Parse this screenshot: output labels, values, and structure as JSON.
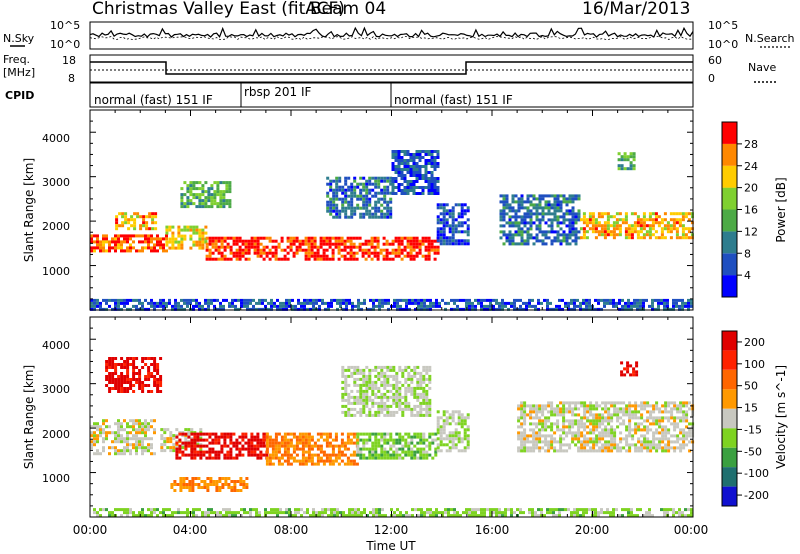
{
  "header": {
    "title": "Christmas Valley East (fitACF)",
    "beam": "Beam 04",
    "date": "16/Mar/2013"
  },
  "noise_panel": {
    "left_label": "N.Sky",
    "left_ticks": [
      "10^5",
      "10^0"
    ],
    "right_ticks": [
      "10^5",
      "10^0"
    ],
    "right_label": "N.Search"
  },
  "freq_panel": {
    "left_label_1": "Freq.",
    "left_label_2": "[MHz]",
    "left_ticks": [
      "18",
      "8"
    ],
    "right_ticks": [
      "60",
      "0"
    ],
    "right_label": "Nave"
  },
  "cpid": {
    "label": "CPID",
    "segments": [
      {
        "name": "normal (fast) 151 IF",
        "start_hour": 0,
        "end_hour": 5.9
      },
      {
        "name": "rbsp 201 IF",
        "start_hour": 5.9,
        "end_hour": 11.9
      },
      {
        "name": "normal (fast) 151 IF",
        "start_hour": 11.9,
        "end_hour": 24
      }
    ]
  },
  "x_axis": {
    "label": "Time UT",
    "ticks": [
      "00:00",
      "04:00",
      "08:00",
      "12:00",
      "16:00",
      "20:00",
      "00:00"
    ]
  },
  "chart_data": [
    {
      "type": "heatmap",
      "parameter": "power",
      "xlabel": "Time UT",
      "ylabel": "Slant Range [km]",
      "xlim": [
        0,
        24
      ],
      "ylim": [
        0,
        4500
      ],
      "yticks": [
        "1000",
        "2000",
        "3000",
        "4000"
      ],
      "colorbar": {
        "label": "Power [dB]",
        "ticks": [
          "4",
          "8",
          "12",
          "16",
          "20",
          "24",
          "28"
        ],
        "range": [
          0,
          30
        ],
        "colors": [
          "#0000ff",
          "#1f4fc0",
          "#2e7d8e",
          "#4caa46",
          "#7fd030",
          "#ffcc00",
          "#ff8800",
          "#ff0000"
        ]
      },
      "echo_regions": [
        {
          "time": [
            0.0,
            3.0
          ],
          "range": [
            1300,
            1700
          ],
          "value": 26
        },
        {
          "time": [
            3.0,
            4.6
          ],
          "range": [
            1400,
            1900
          ],
          "value": 20
        },
        {
          "time": [
            4.6,
            13.8
          ],
          "range": [
            1150,
            1650
          ],
          "value": 28
        },
        {
          "time": [
            1.0,
            2.6
          ],
          "range": [
            1800,
            2200
          ],
          "value": 22
        },
        {
          "time": [
            3.6,
            5.6
          ],
          "range": [
            2300,
            2900
          ],
          "value": 14
        },
        {
          "time": [
            9.4,
            12.0
          ],
          "range": [
            2100,
            3000
          ],
          "value": 8
        },
        {
          "time": [
            12.0,
            13.8
          ],
          "range": [
            2600,
            3600
          ],
          "value": 6
        },
        {
          "time": [
            13.8,
            15.0
          ],
          "range": [
            1500,
            2400
          ],
          "value": 6
        },
        {
          "time": [
            16.3,
            19.5
          ],
          "range": [
            1500,
            2600
          ],
          "value": 8
        },
        {
          "time": [
            19.5,
            24.0
          ],
          "range": [
            1600,
            2200
          ],
          "value": 22
        },
        {
          "time": [
            21.0,
            21.7
          ],
          "range": [
            3200,
            3550
          ],
          "value": 14
        },
        {
          "time": [
            0.0,
            24.0
          ],
          "range": [
            0,
            250
          ],
          "value": 6
        }
      ]
    },
    {
      "type": "heatmap",
      "parameter": "velocity",
      "xlabel": "Time UT",
      "ylabel": "Slant Range [km]",
      "xlim": [
        0,
        24
      ],
      "ylim": [
        0,
        4500
      ],
      "yticks": [
        "1000",
        "2000",
        "3000",
        "4000"
      ],
      "colorbar": {
        "label": "Velocity [m s^-1]",
        "ticks": [
          "200",
          "100",
          "50",
          "15",
          "-15",
          "-50",
          "-100",
          "-200"
        ],
        "range": [
          -250,
          250
        ],
        "colors": [
          "#1010d0",
          "#1f6f6f",
          "#3aa040",
          "#7ed321",
          "#c8c8c0",
          "#ff9900",
          "#ff6600",
          "#ff2200",
          "#e00000"
        ]
      },
      "echo_regions": [
        {
          "time": [
            0.0,
            2.6
          ],
          "range": [
            1400,
            2200
          ],
          "value": 0
        },
        {
          "time": [
            0.6,
            2.8
          ],
          "range": [
            2800,
            3600
          ],
          "value": 220
        },
        {
          "time": [
            2.8,
            4.4
          ],
          "range": [
            1500,
            2000
          ],
          "value": 0
        },
        {
          "time": [
            3.4,
            7.0
          ],
          "range": [
            1300,
            1900
          ],
          "value": 220
        },
        {
          "time": [
            7.0,
            10.6
          ],
          "range": [
            1200,
            1900
          ],
          "value": 80
        },
        {
          "time": [
            10.6,
            13.8
          ],
          "range": [
            1300,
            1900
          ],
          "value": -60
        },
        {
          "time": [
            3.2,
            6.2
          ],
          "range": [
            600,
            900
          ],
          "value": 80
        },
        {
          "time": [
            10.0,
            13.5
          ],
          "range": [
            2300,
            3400
          ],
          "value": -20
        },
        {
          "time": [
            13.8,
            15.0
          ],
          "range": [
            1500,
            2400
          ],
          "value": -20
        },
        {
          "time": [
            17.0,
            24.0
          ],
          "range": [
            1500,
            2600
          ],
          "value": 0
        },
        {
          "time": [
            21.1,
            21.7
          ],
          "range": [
            3200,
            3500
          ],
          "value": 220
        },
        {
          "time": [
            0.0,
            24.0
          ],
          "range": [
            0,
            200
          ],
          "value": -50
        }
      ]
    }
  ]
}
